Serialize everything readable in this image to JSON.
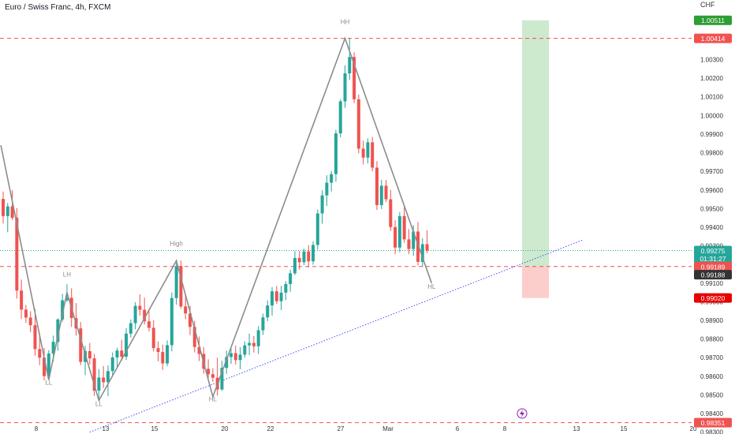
{
  "header": {
    "title": "Euro / Swiss Franc, 4h, FXCM"
  },
  "price_axis": {
    "currency": "CHF",
    "ticks": [
      "1.00300",
      "1.00200",
      "1.00100",
      "1.00000",
      "0.99900",
      "0.99800",
      "0.99700",
      "0.99600",
      "0.99500",
      "0.99400",
      "0.99300",
      "0.99100",
      "0.99000",
      "0.98900",
      "0.98800",
      "0.98700",
      "0.98600",
      "0.98500",
      "0.98400",
      "0.98300"
    ],
    "colors": {
      "up": "#26a69a",
      "down": "#ef5350",
      "level": "#ef5350",
      "current": "#26a69a"
    }
  },
  "time_axis": {
    "ticks": [
      "8",
      "13",
      "15",
      "20",
      "22",
      "27",
      "Mar",
      "6",
      "8",
      "13",
      "15",
      "20"
    ]
  },
  "price_labels": [
    {
      "name": "target-price",
      "text": "1.00511",
      "price": 1.00511,
      "bg": "#2e9d33",
      "fg": "#ffffff"
    },
    {
      "name": "resistance-price",
      "text": "1.00414",
      "price": 1.00414,
      "bg": "#ef5350",
      "fg": "#ffffff"
    },
    {
      "name": "current-price",
      "text": "0.99275",
      "price": 0.99275,
      "bg": "#26a69a",
      "fg": "#ffffff"
    },
    {
      "name": "countdown",
      "text": "01:31:27",
      "price": 0.99232,
      "bg": "#26a69a",
      "fg": "#ffffff"
    },
    {
      "name": "entry-price",
      "text": "0.99189",
      "price": 0.99189,
      "bg": "#ef5350",
      "fg": "#ffffff"
    },
    {
      "name": "entry-price-2",
      "text": "0.99188",
      "price": 0.99145,
      "bg": "#333333",
      "fg": "#ffffff"
    },
    {
      "name": "stop-price",
      "text": "0.99020",
      "price": 0.9902,
      "bg": "#e60000",
      "fg": "#ffffff"
    },
    {
      "name": "support-price",
      "text": "0.98351",
      "price": 0.98351,
      "bg": "#ef5350",
      "fg": "#ffffff"
    }
  ],
  "annotations": {
    "labels": [
      {
        "text": "LH",
        "t": 14,
        "price": 0.99135
      },
      {
        "text": "LL",
        "t": 10,
        "price": 0.98555
      },
      {
        "text": "LL",
        "t": 21,
        "price": 0.9844
      },
      {
        "text": "High",
        "t": 38,
        "price": 0.993
      },
      {
        "text": "HL",
        "t": 46,
        "price": 0.98465
      },
      {
        "text": "HH",
        "t": 75,
        "price": 1.0049
      },
      {
        "text": "HL",
        "t": 94,
        "price": 0.9907
      }
    ]
  },
  "chart_data": {
    "type": "candlestick",
    "title": "Euro / Swiss Franc, 4h, FXCM",
    "ylabel": "CHF",
    "ylim": [
      0.9829,
      1.0062
    ],
    "levels": [
      1.00414,
      0.99189,
      0.98351
    ],
    "current_price": 0.99275,
    "zigzag": [
      {
        "t": -0.5,
        "price": 0.9984
      },
      {
        "t": 10,
        "price": 0.9858
      },
      {
        "t": 14,
        "price": 0.9905
      },
      {
        "t": 21,
        "price": 0.9847
      },
      {
        "t": 38,
        "price": 0.9922
      },
      {
        "t": 46,
        "price": 0.9849
      },
      {
        "t": 75,
        "price": 1.00414
      },
      {
        "t": 94,
        "price": 0.991
      }
    ],
    "trendline": [
      {
        "t": 19,
        "price": 0.983
      },
      {
        "t": 127,
        "price": 0.9933
      }
    ],
    "position": {
      "type": "long",
      "entry": 0.99189,
      "target": 1.00511,
      "stop": 0.9902
    },
    "candles": [
      {
        "o": 0.99552,
        "h": 0.99592,
        "l": 0.9942,
        "c": 0.9946
      },
      {
        "o": 0.9946,
        "h": 0.9953,
        "l": 0.99373,
        "c": 0.99512
      },
      {
        "o": 0.99512,
        "h": 0.99599,
        "l": 0.99439,
        "c": 0.99451
      },
      {
        "o": 0.99451,
        "h": 0.99503,
        "l": 0.99017,
        "c": 0.9906
      },
      {
        "o": 0.9906,
        "h": 0.99119,
        "l": 0.98908,
        "c": 0.98958
      },
      {
        "o": 0.98958,
        "h": 0.98983,
        "l": 0.98886,
        "c": 0.98915
      },
      {
        "o": 0.98915,
        "h": 0.98949,
        "l": 0.98837,
        "c": 0.98874
      },
      {
        "o": 0.98874,
        "h": 0.98962,
        "l": 0.98711,
        "c": 0.98746
      },
      {
        "o": 0.98746,
        "h": 0.98829,
        "l": 0.9866,
        "c": 0.987
      },
      {
        "o": 0.987,
        "h": 0.98752,
        "l": 0.98578,
        "c": 0.98601
      },
      {
        "o": 0.98601,
        "h": 0.9874,
        "l": 0.98596,
        "c": 0.98722
      },
      {
        "o": 0.98722,
        "h": 0.98818,
        "l": 0.98679,
        "c": 0.98785
      },
      {
        "o": 0.98785,
        "h": 0.98911,
        "l": 0.98737,
        "c": 0.98905
      },
      {
        "o": 0.98905,
        "h": 0.99043,
        "l": 0.98893,
        "c": 0.99008
      },
      {
        "o": 0.99008,
        "h": 0.99094,
        "l": 0.98999,
        "c": 0.99021
      },
      {
        "o": 0.99021,
        "h": 0.99072,
        "l": 0.98865,
        "c": 0.98912
      },
      {
        "o": 0.98912,
        "h": 0.98993,
        "l": 0.98818,
        "c": 0.98857
      },
      {
        "o": 0.98857,
        "h": 0.98891,
        "l": 0.98659,
        "c": 0.98677
      },
      {
        "o": 0.98677,
        "h": 0.98764,
        "l": 0.98606,
        "c": 0.98735
      },
      {
        "o": 0.98735,
        "h": 0.98779,
        "l": 0.98664,
        "c": 0.98696
      },
      {
        "o": 0.98696,
        "h": 0.9872,
        "l": 0.98494,
        "c": 0.98523
      },
      {
        "o": 0.98523,
        "h": 0.98638,
        "l": 0.98472,
        "c": 0.98593
      },
      {
        "o": 0.98593,
        "h": 0.98655,
        "l": 0.98537,
        "c": 0.98568
      },
      {
        "o": 0.98568,
        "h": 0.98658,
        "l": 0.98493,
        "c": 0.98628
      },
      {
        "o": 0.98628,
        "h": 0.98728,
        "l": 0.98602,
        "c": 0.98701
      },
      {
        "o": 0.98701,
        "h": 0.98753,
        "l": 0.98644,
        "c": 0.98738
      },
      {
        "o": 0.98738,
        "h": 0.98796,
        "l": 0.98685,
        "c": 0.98705
      },
      {
        "o": 0.98705,
        "h": 0.98859,
        "l": 0.98688,
        "c": 0.98829
      },
      {
        "o": 0.98829,
        "h": 0.98905,
        "l": 0.98807,
        "c": 0.98885
      },
      {
        "o": 0.98885,
        "h": 0.98998,
        "l": 0.98852,
        "c": 0.98978
      },
      {
        "o": 0.98978,
        "h": 0.9904,
        "l": 0.98926,
        "c": 0.98957
      },
      {
        "o": 0.98957,
        "h": 0.99022,
        "l": 0.98878,
        "c": 0.98895
      },
      {
        "o": 0.98895,
        "h": 0.98964,
        "l": 0.9884,
        "c": 0.9886
      },
      {
        "o": 0.9886,
        "h": 0.989,
        "l": 0.98733,
        "c": 0.98751
      },
      {
        "o": 0.98751,
        "h": 0.98787,
        "l": 0.98681,
        "c": 0.9873
      },
      {
        "o": 0.9873,
        "h": 0.9877,
        "l": 0.98634,
        "c": 0.98669
      },
      {
        "o": 0.98669,
        "h": 0.98792,
        "l": 0.98654,
        "c": 0.98767
      },
      {
        "o": 0.98767,
        "h": 0.9905,
        "l": 0.98734,
        "c": 0.9902
      },
      {
        "o": 0.9902,
        "h": 0.99227,
        "l": 0.98984,
        "c": 0.99192
      },
      {
        "o": 0.99192,
        "h": 0.99221,
        "l": 0.98963,
        "c": 0.98975
      },
      {
        "o": 0.98975,
        "h": 0.99044,
        "l": 0.98906,
        "c": 0.98937
      },
      {
        "o": 0.98937,
        "h": 0.98978,
        "l": 0.98821,
        "c": 0.98865
      },
      {
        "o": 0.98865,
        "h": 0.98898,
        "l": 0.98728,
        "c": 0.98757
      },
      {
        "o": 0.98757,
        "h": 0.98813,
        "l": 0.98682,
        "c": 0.9872
      },
      {
        "o": 0.9872,
        "h": 0.98757,
        "l": 0.98613,
        "c": 0.9864
      },
      {
        "o": 0.9864,
        "h": 0.98691,
        "l": 0.9859,
        "c": 0.98611
      },
      {
        "o": 0.98611,
        "h": 0.98643,
        "l": 0.9857,
        "c": 0.98592
      },
      {
        "o": 0.98592,
        "h": 0.987,
        "l": 0.98496,
        "c": 0.98529
      },
      {
        "o": 0.98529,
        "h": 0.98683,
        "l": 0.98522,
        "c": 0.98645
      },
      {
        "o": 0.98645,
        "h": 0.98738,
        "l": 0.98613,
        "c": 0.98703
      },
      {
        "o": 0.98703,
        "h": 0.98749,
        "l": 0.98667,
        "c": 0.98724
      },
      {
        "o": 0.98724,
        "h": 0.98765,
        "l": 0.98663,
        "c": 0.98687
      },
      {
        "o": 0.98687,
        "h": 0.98757,
        "l": 0.98637,
        "c": 0.98716
      },
      {
        "o": 0.98716,
        "h": 0.98788,
        "l": 0.987,
        "c": 0.98766
      },
      {
        "o": 0.98766,
        "h": 0.98829,
        "l": 0.98714,
        "c": 0.98779
      },
      {
        "o": 0.98779,
        "h": 0.98816,
        "l": 0.98727,
        "c": 0.98761
      },
      {
        "o": 0.98761,
        "h": 0.98869,
        "l": 0.98719,
        "c": 0.98847
      },
      {
        "o": 0.98847,
        "h": 0.98936,
        "l": 0.98822,
        "c": 0.98916
      },
      {
        "o": 0.98916,
        "h": 0.99007,
        "l": 0.98896,
        "c": 0.9898
      },
      {
        "o": 0.9898,
        "h": 0.99079,
        "l": 0.98925,
        "c": 0.99056
      },
      {
        "o": 0.99056,
        "h": 0.99084,
        "l": 0.98988,
        "c": 0.99003
      },
      {
        "o": 0.99003,
        "h": 0.99086,
        "l": 0.98955,
        "c": 0.99049
      },
      {
        "o": 0.99049,
        "h": 0.99111,
        "l": 0.99009,
        "c": 0.99095
      },
      {
        "o": 0.99095,
        "h": 0.99172,
        "l": 0.99054,
        "c": 0.99153
      },
      {
        "o": 0.99153,
        "h": 0.99272,
        "l": 0.99143,
        "c": 0.99235
      },
      {
        "o": 0.99235,
        "h": 0.99273,
        "l": 0.99173,
        "c": 0.99212
      },
      {
        "o": 0.99212,
        "h": 0.99285,
        "l": 0.99196,
        "c": 0.9927
      },
      {
        "o": 0.9927,
        "h": 0.99304,
        "l": 0.99183,
        "c": 0.99217
      },
      {
        "o": 0.99217,
        "h": 0.99325,
        "l": 0.99199,
        "c": 0.99305
      },
      {
        "o": 0.99305,
        "h": 0.99495,
        "l": 0.9928,
        "c": 0.99474
      },
      {
        "o": 0.99474,
        "h": 0.99599,
        "l": 0.99419,
        "c": 0.99571
      },
      {
        "o": 0.99571,
        "h": 0.99679,
        "l": 0.99514,
        "c": 0.99639
      },
      {
        "o": 0.99639,
        "h": 0.99702,
        "l": 0.99592,
        "c": 0.99685
      },
      {
        "o": 0.99685,
        "h": 0.99923,
        "l": 0.99644,
        "c": 0.99904
      },
      {
        "o": 0.99904,
        "h": 1.00087,
        "l": 0.99883,
        "c": 1.00076
      },
      {
        "o": 1.00076,
        "h": 1.0027,
        "l": 1.00041,
        "c": 1.00226
      },
      {
        "o": 1.00226,
        "h": 1.00414,
        "l": 1.0019,
        "c": 1.00314
      },
      {
        "o": 1.00314,
        "h": 1.00339,
        "l": 1.00066,
        "c": 1.00087
      },
      {
        "o": 1.00087,
        "h": 1.00113,
        "l": 0.99797,
        "c": 0.99822
      },
      {
        "o": 0.99822,
        "h": 0.99865,
        "l": 0.99737,
        "c": 0.99774
      },
      {
        "o": 0.99774,
        "h": 0.99877,
        "l": 0.99743,
        "c": 0.99856
      },
      {
        "o": 0.99856,
        "h": 0.99885,
        "l": 0.997,
        "c": 0.9972
      },
      {
        "o": 0.9972,
        "h": 0.99755,
        "l": 0.99493,
        "c": 0.99519
      },
      {
        "o": 0.99519,
        "h": 0.99655,
        "l": 0.99498,
        "c": 0.99623
      },
      {
        "o": 0.99623,
        "h": 0.99654,
        "l": 0.99535,
        "c": 0.9955
      },
      {
        "o": 0.9955,
        "h": 0.99601,
        "l": 0.9938,
        "c": 0.99401
      },
      {
        "o": 0.99401,
        "h": 0.99438,
        "l": 0.99256,
        "c": 0.99291
      },
      {
        "o": 0.99291,
        "h": 0.99482,
        "l": 0.99265,
        "c": 0.9946
      },
      {
        "o": 0.9946,
        "h": 0.99514,
        "l": 0.99317,
        "c": 0.99335
      },
      {
        "o": 0.99335,
        "h": 0.9939,
        "l": 0.99256,
        "c": 0.99283
      },
      {
        "o": 0.99283,
        "h": 0.99411,
        "l": 0.99246,
        "c": 0.99377
      },
      {
        "o": 0.99377,
        "h": 0.99428,
        "l": 0.99195,
        "c": 0.99214
      },
      {
        "o": 0.99214,
        "h": 0.99341,
        "l": 0.99186,
        "c": 0.99309
      },
      {
        "o": 0.99309,
        "h": 0.99384,
        "l": 0.9926,
        "c": 0.99275
      }
    ]
  }
}
